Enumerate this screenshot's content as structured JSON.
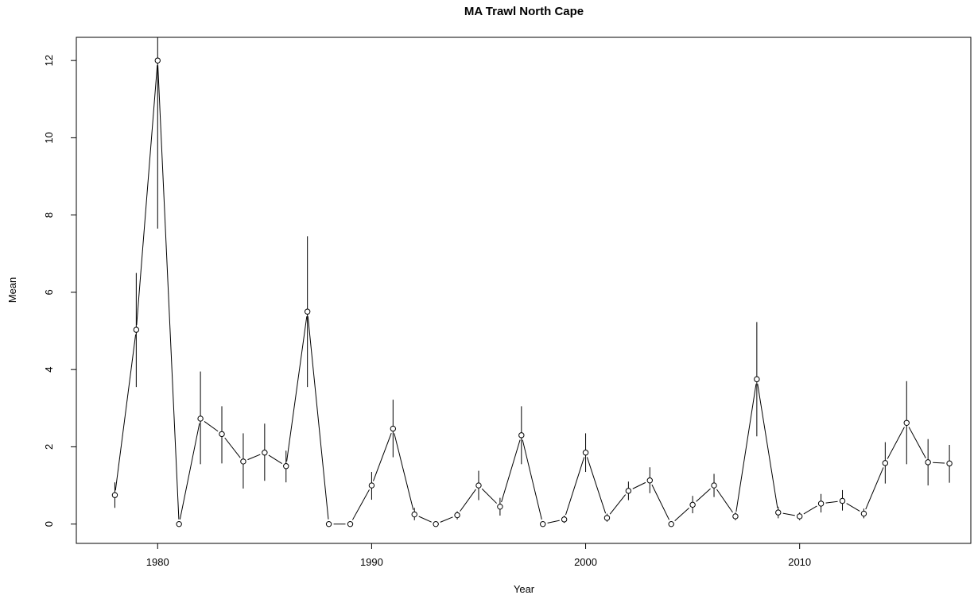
{
  "chart_data": {
    "type": "line",
    "title": "MA Trawl North Cape",
    "xlabel": "Year",
    "ylabel": "Mean",
    "xlim": [
      1976.2,
      2018.0
    ],
    "ylim": [
      -0.5,
      12.6
    ],
    "x_ticks": [
      1980,
      1990,
      2000,
      2010
    ],
    "y_ticks": [
      0,
      2,
      4,
      6,
      8,
      10,
      12
    ],
    "grid": false,
    "legend": "none",
    "series": [
      {
        "marker": "open-circle",
        "error_bars": true,
        "points": [
          {
            "x": 1978,
            "y": 0.75,
            "lo": 0.42,
            "hi": 1.08
          },
          {
            "x": 1979,
            "y": 5.03,
            "lo": 3.55,
            "hi": 6.5
          },
          {
            "x": 1980,
            "y": 12.0,
            "lo": 7.65,
            "hi": 12.6
          },
          {
            "x": 1981,
            "y": 0.0,
            "lo": 0.0,
            "hi": 0.0
          },
          {
            "x": 1982,
            "y": 2.73,
            "lo": 1.55,
            "hi": 3.95
          },
          {
            "x": 1983,
            "y": 2.33,
            "lo": 1.57,
            "hi": 3.05
          },
          {
            "x": 1984,
            "y": 1.62,
            "lo": 0.92,
            "hi": 2.35
          },
          {
            "x": 1985,
            "y": 1.85,
            "lo": 1.12,
            "hi": 2.6
          },
          {
            "x": 1986,
            "y": 1.5,
            "lo": 1.08,
            "hi": 1.9
          },
          {
            "x": 1987,
            "y": 5.5,
            "lo": 3.55,
            "hi": 7.45
          },
          {
            "x": 1988,
            "y": 0.0,
            "lo": 0.0,
            "hi": 0.0
          },
          {
            "x": 1989,
            "y": 0.0,
            "lo": 0.0,
            "hi": 0.0
          },
          {
            "x": 1990,
            "y": 1.0,
            "lo": 0.63,
            "hi": 1.35
          },
          {
            "x": 1991,
            "y": 2.47,
            "lo": 1.73,
            "hi": 3.22
          },
          {
            "x": 1992,
            "y": 0.25,
            "lo": 0.1,
            "hi": 0.42
          },
          {
            "x": 1993,
            "y": 0.0,
            "lo": 0.0,
            "hi": 0.0
          },
          {
            "x": 1994,
            "y": 0.23,
            "lo": 0.12,
            "hi": 0.33
          },
          {
            "x": 1995,
            "y": 1.0,
            "lo": 0.62,
            "hi": 1.38
          },
          {
            "x": 1996,
            "y": 0.45,
            "lo": 0.22,
            "hi": 0.68
          },
          {
            "x": 1997,
            "y": 2.3,
            "lo": 1.55,
            "hi": 3.05
          },
          {
            "x": 1998,
            "y": 0.0,
            "lo": 0.0,
            "hi": 0.0
          },
          {
            "x": 1999,
            "y": 0.12,
            "lo": 0.03,
            "hi": 0.22
          },
          {
            "x": 2000,
            "y": 1.85,
            "lo": 1.35,
            "hi": 2.35
          },
          {
            "x": 2001,
            "y": 0.16,
            "lo": 0.06,
            "hi": 0.27
          },
          {
            "x": 2002,
            "y": 0.86,
            "lo": 0.62,
            "hi": 1.1
          },
          {
            "x": 2003,
            "y": 1.13,
            "lo": 0.8,
            "hi": 1.47
          },
          {
            "x": 2004,
            "y": 0.0,
            "lo": 0.0,
            "hi": 0.0
          },
          {
            "x": 2005,
            "y": 0.5,
            "lo": 0.28,
            "hi": 0.73
          },
          {
            "x": 2006,
            "y": 1.0,
            "lo": 0.7,
            "hi": 1.3
          },
          {
            "x": 2007,
            "y": 0.2,
            "lo": 0.1,
            "hi": 0.3
          },
          {
            "x": 2008,
            "y": 3.75,
            "lo": 2.27,
            "hi": 5.23
          },
          {
            "x": 2009,
            "y": 0.3,
            "lo": 0.15,
            "hi": 0.45
          },
          {
            "x": 2010,
            "y": 0.2,
            "lo": 0.1,
            "hi": 0.3
          },
          {
            "x": 2011,
            "y": 0.53,
            "lo": 0.3,
            "hi": 0.78
          },
          {
            "x": 2012,
            "y": 0.6,
            "lo": 0.35,
            "hi": 0.88
          },
          {
            "x": 2013,
            "y": 0.27,
            "lo": 0.15,
            "hi": 0.4
          },
          {
            "x": 2014,
            "y": 1.58,
            "lo": 1.05,
            "hi": 2.12
          },
          {
            "x": 2015,
            "y": 2.62,
            "lo": 1.55,
            "hi": 3.7
          },
          {
            "x": 2016,
            "y": 1.6,
            "lo": 1.0,
            "hi": 2.2
          },
          {
            "x": 2017,
            "y": 1.57,
            "lo": 1.07,
            "hi": 2.05
          }
        ]
      }
    ]
  }
}
